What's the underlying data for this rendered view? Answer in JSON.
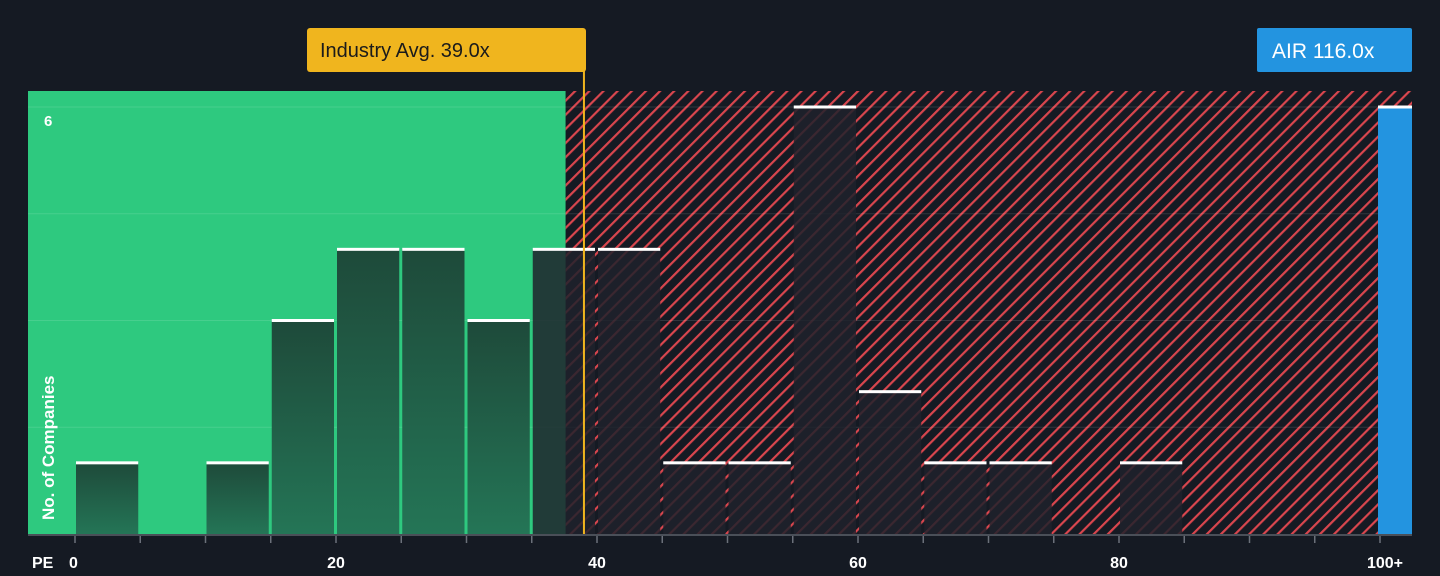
{
  "chart_data": {
    "type": "bar",
    "xlabel": "PE",
    "ylabel": "No. of Companies",
    "bin_width": 5,
    "bins_start": [
      0,
      5,
      10,
      15,
      20,
      25,
      30,
      35,
      40,
      45,
      50,
      55,
      60,
      65,
      70,
      75,
      80
    ],
    "values": [
      1,
      0,
      1,
      3,
      4,
      4,
      3,
      4,
      4,
      1,
      1,
      6,
      2,
      1,
      1,
      0,
      1
    ],
    "x_ticks": [
      "0",
      "20",
      "40",
      "60",
      "80",
      "100+"
    ],
    "x_tick_values": [
      0,
      20,
      40,
      60,
      80,
      100
    ],
    "y_ticks": [
      "6"
    ],
    "ylim": [
      0,
      6.2
    ],
    "grid": true,
    "fair_threshold": 37.6,
    "industry_avg": {
      "label": "Industry Avg. 39.0x",
      "value": 39.0
    },
    "company": {
      "label": "AIR 116.0x",
      "value": 116.0,
      "count": 6
    },
    "colors": {
      "background": "#151a23",
      "fair_region": "#2ec97f",
      "over_region_hatch": "#d9464e",
      "industry_avg": "#f0b51e",
      "company": "#2394e0",
      "bar_cap": "#ffffff"
    }
  }
}
